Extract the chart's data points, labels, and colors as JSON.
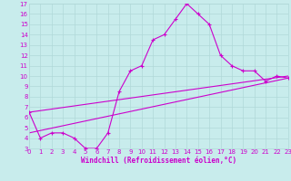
{
  "xlabel": "Windchill (Refroidissement éolien,°C)",
  "bg_color": "#c8ecec",
  "line_color": "#cc00cc",
  "grid_color": "#b0d8d8",
  "x_values": [
    0,
    1,
    2,
    3,
    4,
    5,
    6,
    7,
    8,
    9,
    10,
    11,
    12,
    13,
    14,
    15,
    16,
    17,
    18,
    19,
    20,
    21,
    22,
    23
  ],
  "y_main": [
    6.5,
    4.0,
    4.5,
    4.5,
    4.0,
    3.0,
    3.0,
    4.5,
    8.5,
    10.5,
    11.0,
    13.5,
    14.0,
    15.5,
    17.0,
    16.0,
    15.0,
    12.0,
    11.0,
    10.5,
    10.5,
    9.5,
    10.0,
    9.8
  ],
  "y_lin1_start": 6.5,
  "y_lin1_end": 10.0,
  "y_lin2_start": 4.5,
  "y_lin2_end": 9.8,
  "ylim": [
    3,
    17
  ],
  "xlim": [
    0,
    23
  ],
  "yticks": [
    3,
    4,
    5,
    6,
    7,
    8,
    9,
    10,
    11,
    12,
    13,
    14,
    15,
    16,
    17
  ],
  "xticks": [
    0,
    1,
    2,
    3,
    4,
    5,
    6,
    7,
    8,
    9,
    10,
    11,
    12,
    13,
    14,
    15,
    16,
    17,
    18,
    19,
    20,
    21,
    22,
    23
  ],
  "tick_fontsize": 5.0,
  "xlabel_fontsize": 5.5
}
